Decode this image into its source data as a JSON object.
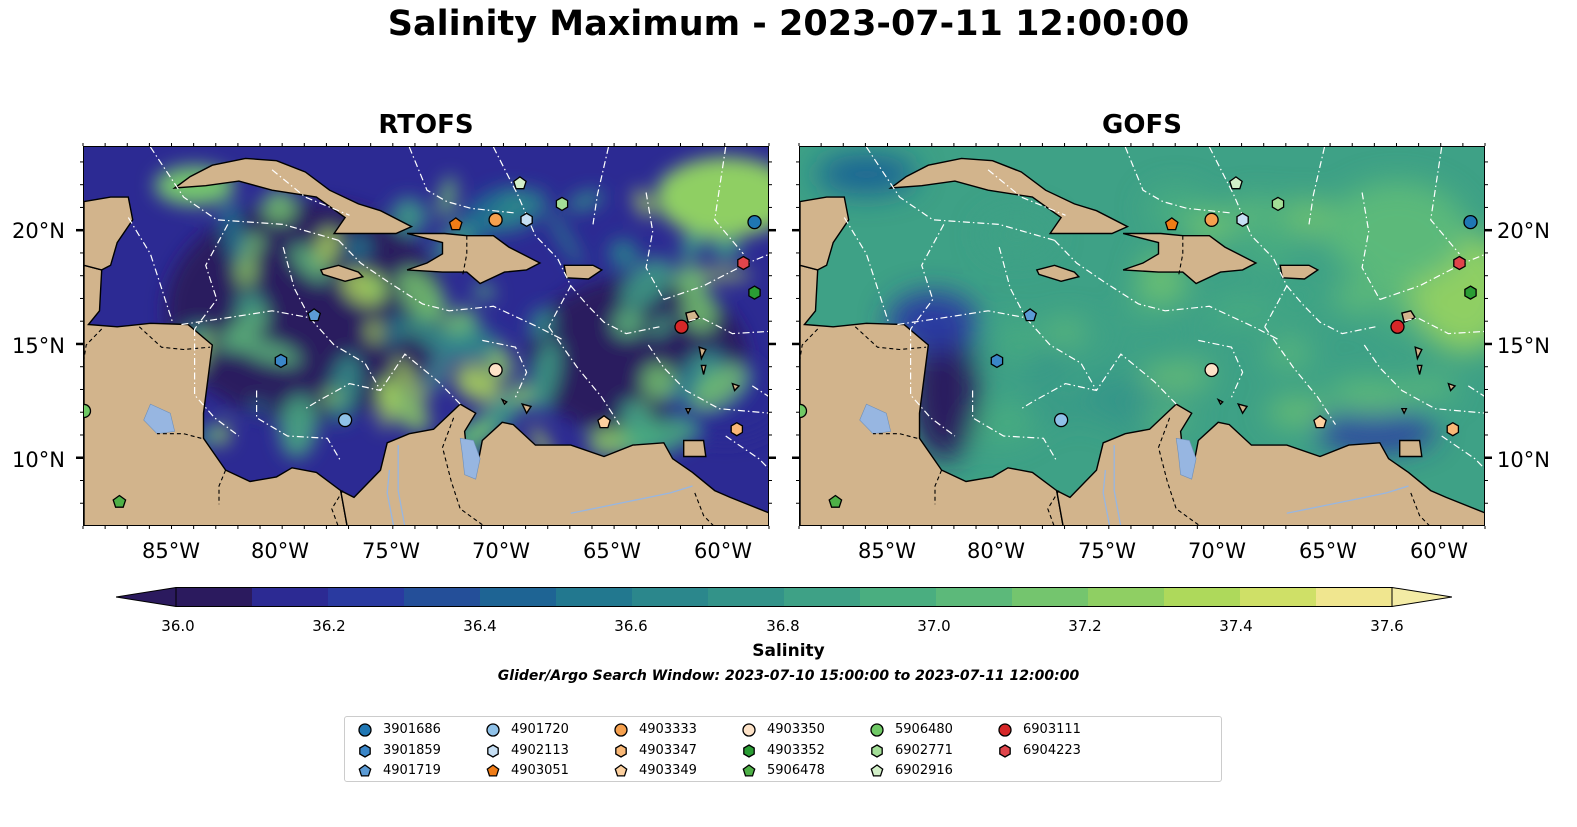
{
  "title": "Salinity Maximum - 2023-07-11 12:00:00",
  "panels": [
    {
      "title": "RTOFS"
    },
    {
      "title": "GOFS"
    }
  ],
  "lat_ticks": [
    "20°N",
    "15°N",
    "10°N"
  ],
  "lon_ticks": [
    "85°W",
    "80°W",
    "75°W",
    "70°W",
    "65°W",
    "60°W"
  ],
  "colorbar": {
    "label": "Salinity",
    "ticks": [
      "36.0",
      "36.2",
      "36.4",
      "36.6",
      "36.8",
      "37.0",
      "37.2",
      "37.4",
      "37.6"
    ],
    "min": 36.0,
    "max": 37.6,
    "colors": [
      "#2b1a5e",
      "#2c2a93",
      "#2a3aa0",
      "#244f99",
      "#1e6494",
      "#22788f",
      "#2b878c",
      "#339389",
      "#3ea186",
      "#4aae80",
      "#5cb97a",
      "#74c56e",
      "#8fcf63",
      "#aed95b",
      "#cfe067",
      "#f0e68f"
    ]
  },
  "search_window": "Glider/Argo Search Window: 2023-07-10 15:00:00 to 2023-07-11 12:00:00",
  "map_colors": {
    "land": "#d2b48c",
    "water_body": "#97b6e1",
    "coast": "#000000",
    "eez": "#ffffff"
  },
  "legend": [
    {
      "id": "3901686",
      "marker": "circle",
      "color": "#1f77b4"
    },
    {
      "id": "3901859",
      "marker": "hexagon",
      "color": "#3a86c8"
    },
    {
      "id": "4901719",
      "marker": "pentagon",
      "color": "#5b9bd5"
    },
    {
      "id": "4901720",
      "marker": "circle",
      "color": "#8fc1e8"
    },
    {
      "id": "4902113",
      "marker": "hexagon",
      "color": "#c6dff4"
    },
    {
      "id": "4903051",
      "marker": "pentagon",
      "color": "#f07c16"
    },
    {
      "id": "4903333",
      "marker": "circle",
      "color": "#f5a04e"
    },
    {
      "id": "4903347",
      "marker": "hexagon",
      "color": "#f9b877"
    },
    {
      "id": "4903349",
      "marker": "pentagon",
      "color": "#fcd09f"
    },
    {
      "id": "4903350",
      "marker": "circle",
      "color": "#fde2c7"
    },
    {
      "id": "4903352",
      "marker": "hexagon",
      "color": "#2a9d34"
    },
    {
      "id": "5906478",
      "marker": "pentagon",
      "color": "#4eb047"
    },
    {
      "id": "5906480",
      "marker": "circle",
      "color": "#6fc965"
    },
    {
      "id": "6902771",
      "marker": "hexagon",
      "color": "#a3de97"
    },
    {
      "id": "6902916",
      "marker": "pentagon",
      "color": "#d2efc8"
    },
    {
      "id": "6903111",
      "marker": "circle",
      "color": "#d62728"
    },
    {
      "id": "6904223",
      "marker": "hexagon",
      "color": "#e0454b"
    }
  ],
  "platforms": [
    {
      "id": "3901686",
      "lon": -58.7,
      "lat": 20.4
    },
    {
      "id": "6904223",
      "lon": -59.2,
      "lat": 18.6
    },
    {
      "id": "4903352",
      "lon": -58.7,
      "lat": 17.3
    },
    {
      "id": "6903111",
      "lon": -62.0,
      "lat": 15.8
    },
    {
      "id": "4903347",
      "lon": -59.5,
      "lat": 11.3
    },
    {
      "id": "4903349",
      "lon": -65.5,
      "lat": 11.6
    },
    {
      "id": "4903350",
      "lon": -70.4,
      "lat": 13.9
    },
    {
      "id": "4901720",
      "lon": -77.2,
      "lat": 11.7
    },
    {
      "id": "3901859",
      "lon": -80.1,
      "lat": 14.3
    },
    {
      "id": "4901719",
      "lon": -78.6,
      "lat": 16.3
    },
    {
      "id": "4903051",
      "lon": -72.2,
      "lat": 20.3
    },
    {
      "id": "4903333",
      "lon": -70.4,
      "lat": 20.5
    },
    {
      "id": "4902113",
      "lon": -69.0,
      "lat": 20.5
    },
    {
      "id": "6902916",
      "lon": -69.3,
      "lat": 22.1
    },
    {
      "id": "6902771",
      "lon": -67.4,
      "lat": 21.2
    },
    {
      "id": "5906480",
      "lon": -89.0,
      "lat": 12.1
    },
    {
      "id": "5906478",
      "lon": -87.4,
      "lat": 8.1
    }
  ]
}
